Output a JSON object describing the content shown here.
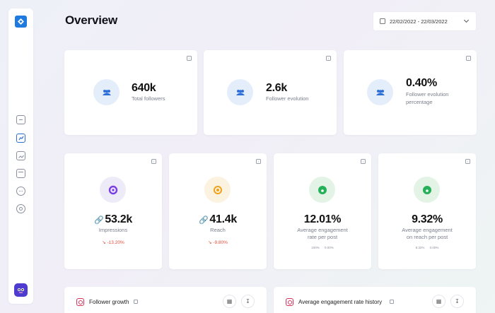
{
  "header": {
    "title": "Overview",
    "date_range": "22/02/2022 - 22/03/2022"
  },
  "sidebar": {
    "items": [
      {
        "icon": "dashboard-icon"
      },
      {
        "icon": "chart-icon",
        "active": true
      },
      {
        "icon": "image-icon"
      },
      {
        "icon": "calendar-icon"
      },
      {
        "icon": "chat-icon"
      },
      {
        "icon": "target-icon"
      }
    ]
  },
  "top_stats": [
    {
      "value": "640k",
      "label": "Total followers"
    },
    {
      "value": "2.6k",
      "label": "Follower evolution"
    },
    {
      "value": "0.40%",
      "label_line1": "Follower evolution",
      "label_line2": "percentage"
    }
  ],
  "mid_stats": [
    {
      "value": "53.2k",
      "label": "Impressions",
      "delta": "↘ -13.20%"
    },
    {
      "value": "41.4k",
      "label": "Reach",
      "delta": "↘ -9.80%"
    },
    {
      "value": "12.01%",
      "label_line1": "Average engagement",
      "label_line2": "rate per post",
      "sub1": "100%",
      "sub2": "0.00%"
    },
    {
      "value": "9.32%",
      "label_line1": "Average engagement",
      "label_line2": "on reach per post",
      "sub1": "8.32%",
      "sub2": "0.00%"
    }
  ],
  "bottom_cards": [
    {
      "title": "Follower growth"
    },
    {
      "title": "Average engagement rate history"
    }
  ],
  "colors": {
    "accent": "#2a6fd6",
    "negative": "#e24d3a",
    "blue_bg": "#e6f0fc",
    "purple": "#7b3fe4",
    "orange": "#f0a21c",
    "green": "#27b05a"
  }
}
